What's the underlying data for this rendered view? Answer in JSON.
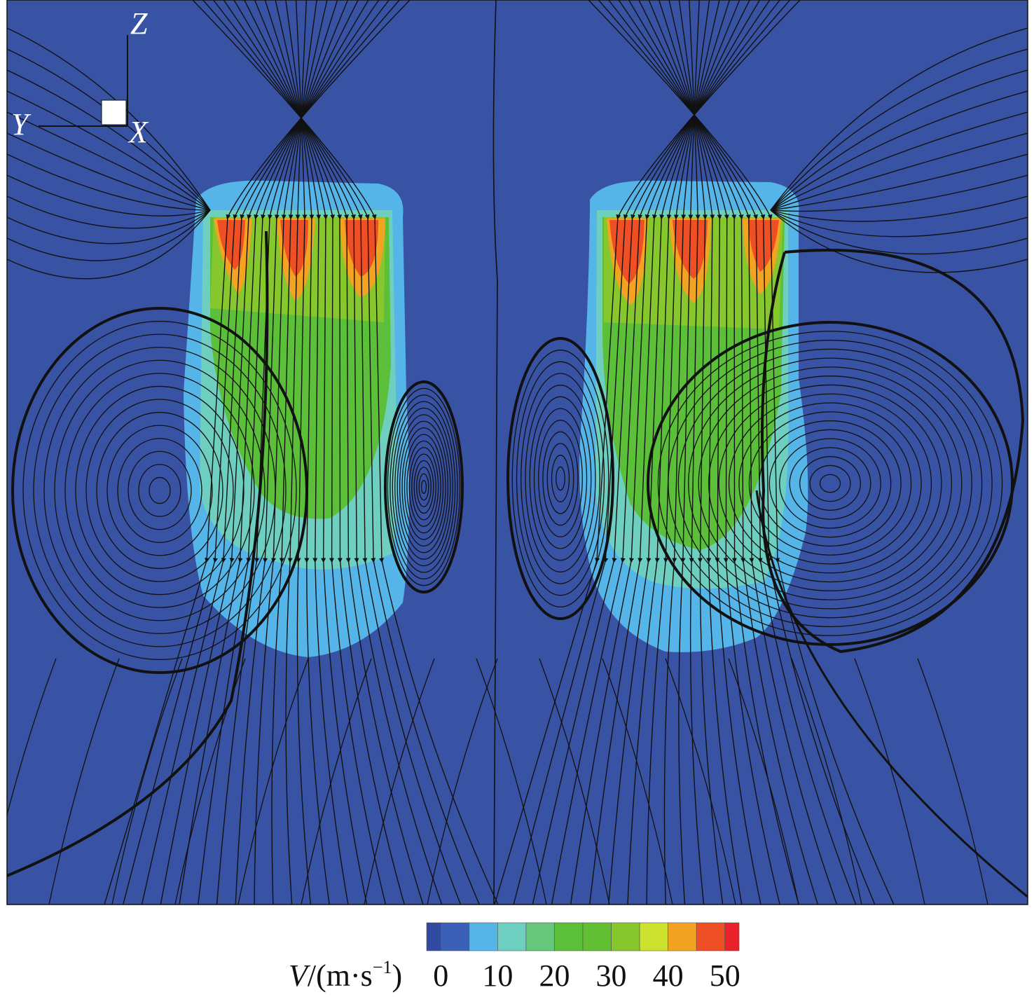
{
  "chart_data": {
    "type": "heatmap",
    "description_kind": "velocity contour with streamlines",
    "axes_triad": {
      "z_label": "Z",
      "y_label": "Y",
      "x_label": "X"
    },
    "colorbar": {
      "label_var": "V",
      "label_unit": "/(m·s",
      "label_exp": "−1",
      "label_close": ")",
      "tick_labels": [
        "0",
        "10",
        "20",
        "30",
        "40",
        "50"
      ],
      "tick_values": [
        0,
        10,
        20,
        30,
        40,
        50
      ],
      "range": [
        -2.5,
        52.5
      ],
      "levels": [
        -2.5,
        0,
        5,
        10,
        15,
        20,
        25,
        30,
        35,
        40,
        45,
        50,
        52.5
      ],
      "colors": [
        "#2f4aa0",
        "#3c5fb8",
        "#55b5e8",
        "#6ecfc0",
        "#66c679",
        "#5cbf3a",
        "#62bf33",
        "#86c72e",
        "#cde22f",
        "#f2a321",
        "#ef4f24",
        "#e8212b"
      ]
    },
    "background_color": "#3953a4",
    "streamline_color": "#111111",
    "vortex_centers_count": 4
  }
}
